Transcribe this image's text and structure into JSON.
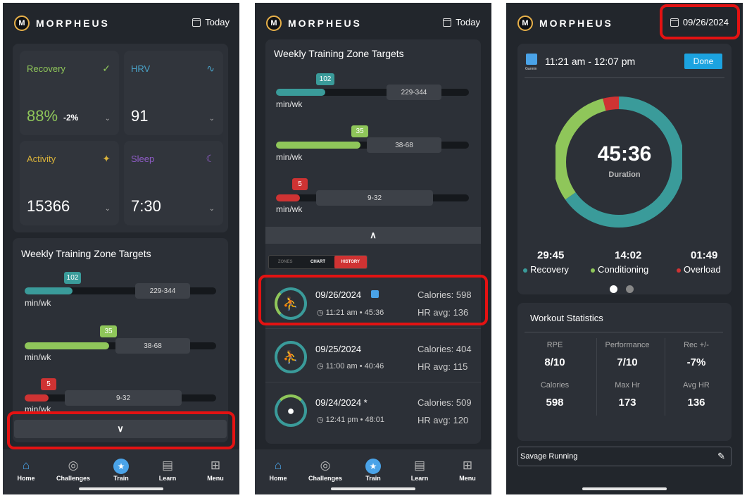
{
  "app": {
    "brand": "MORPHEUS",
    "logo_letter": "M"
  },
  "screen1": {
    "date_label": "Today",
    "tiles": [
      {
        "label": "Recovery",
        "value": "88%",
        "delta": "-2%",
        "icon": "check-circle-icon"
      },
      {
        "label": "HRV",
        "value": "91",
        "icon": "pulse-icon"
      },
      {
        "label": "Activity",
        "value": "15366",
        "icon": "running-icon"
      },
      {
        "label": "Sleep",
        "value": "7:30",
        "icon": "moon-icon"
      }
    ],
    "zones_title": "Weekly Training Zone Targets",
    "zones": [
      {
        "value": "102",
        "range": "229-344",
        "unit": "min/wk",
        "color": "#3a9b9a"
      },
      {
        "value": "35",
        "range": "38-68",
        "unit": "min/wk",
        "color": "#8fc65a"
      },
      {
        "value": "5",
        "range": "9-32",
        "unit": "min/wk",
        "color": "#cf3333"
      }
    ],
    "expand_icon": "chevron-down-icon"
  },
  "nav": [
    {
      "label": "Home",
      "icon": "home-icon"
    },
    {
      "label": "Challenges",
      "icon": "target-icon"
    },
    {
      "label": "Train",
      "icon": "running-icon"
    },
    {
      "label": "Learn",
      "icon": "clipboard-icon"
    },
    {
      "label": "Menu",
      "icon": "grid-icon"
    }
  ],
  "screen2": {
    "date_label": "Today",
    "zones_title": "Weekly Training Zone Targets",
    "zones": [
      {
        "value": "102",
        "range": "229-344",
        "unit": "min/wk"
      },
      {
        "value": "35",
        "range": "38-68",
        "unit": "min/wk"
      },
      {
        "value": "5",
        "range": "9-32",
        "unit": "min/wk"
      }
    ],
    "tabs": [
      "ZONES",
      "CHART",
      "HISTORY"
    ],
    "history": [
      {
        "date": "09/26/2024",
        "time": "11:21 am • 45:36",
        "calories": "Calories: 598",
        "hr": "HR avg: 136"
      },
      {
        "date": "09/25/2024",
        "time": "11:00 am • 40:46",
        "calories": "Calories: 404",
        "hr": "HR avg: 115"
      },
      {
        "date": "09/24/2024 *",
        "time": "12:41 pm • 48:01",
        "calories": "Calories: 509",
        "hr": "HR avg: 120"
      }
    ]
  },
  "screen3": {
    "date_label": "09/26/2024",
    "time_range": "11:21 am - 12:07 pm",
    "device_label": "Garmin",
    "done_label": "Done",
    "duration": "45:36",
    "duration_label": "Duration",
    "ring": {
      "recovery": 29.75,
      "conditioning": 14.03,
      "overload": 1.82
    },
    "breakdown": [
      {
        "value": "29:45",
        "label": "Recovery",
        "color": "#3a9b9a"
      },
      {
        "value": "14:02",
        "label": "Conditioning",
        "color": "#8fc65a"
      },
      {
        "value": "01:49",
        "label": "Overload",
        "color": "#cf3333"
      }
    ],
    "stats_title": "Workout Statistics",
    "stats": [
      {
        "label": "RPE",
        "value": "8/10"
      },
      {
        "label": "Performance",
        "value": "7/10"
      },
      {
        "label": "Rec +/-",
        "value": "-7%"
      },
      {
        "label": "Calories",
        "value": "598"
      },
      {
        "label": "Max Hr",
        "value": "173"
      },
      {
        "label": "Avg HR",
        "value": "136"
      }
    ],
    "note": "Savage Running",
    "edit_icon": "pencil-icon"
  }
}
